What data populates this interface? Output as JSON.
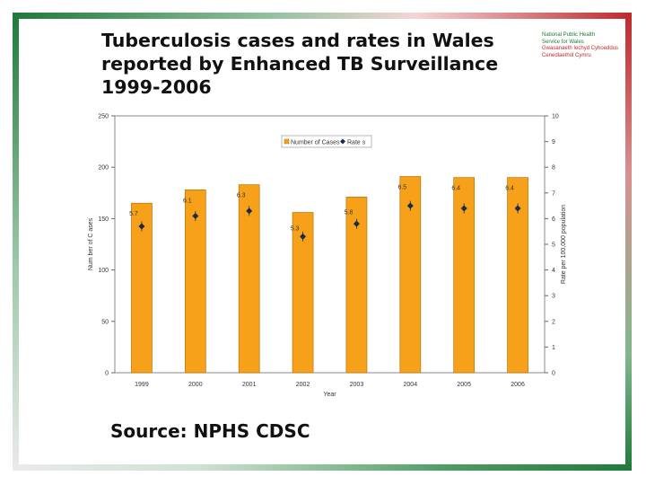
{
  "slide": {
    "title_lines": [
      "Tuberculosis cases and rates in Wales",
      "reported by Enhanced TB Surveillance",
      "1999-2006"
    ],
    "source": "Source: NPHS CDSC",
    "logo_lines_en": [
      "National Public Health",
      "Service for Wales"
    ],
    "logo_lines_cy": [
      "Gwasanaeth Iechyd Cyhoeddus",
      "Cenedlaethol Cymru"
    ]
  },
  "colors": {
    "bar": "#f7a11a",
    "bar_edge": "#b87307",
    "marker": "#1b2a4a",
    "plot_bg": "#ffffff",
    "grid": "#dcdcdc",
    "frame_green": "#1f7a3a",
    "frame_red": "#c0282d"
  },
  "chart_data": {
    "type": "bar",
    "title": "",
    "categories": [
      "1999",
      "2000",
      "2001",
      "2002",
      "2003",
      "2004",
      "2005",
      "2006"
    ],
    "series": [
      {
        "name": "Number of Cases",
        "kind": "bar",
        "axis": "left",
        "values": [
          165,
          178,
          183,
          156,
          171,
          191,
          190,
          190
        ]
      },
      {
        "name": "Rate s",
        "kind": "marker",
        "axis": "right",
        "values": [
          5.7,
          6.1,
          6.3,
          5.3,
          5.8,
          6.5,
          6.4,
          6.4
        ]
      }
    ],
    "xlabel": "Year",
    "ylabel": "Num ber of C ases",
    "y2label": "Rate per 100,000 population",
    "ylim": [
      0,
      250
    ],
    "y2lim": [
      0,
      10
    ],
    "yticks": [
      0,
      50,
      100,
      150,
      200,
      250
    ],
    "y2ticks": [
      0,
      1,
      2,
      3,
      4,
      5,
      6,
      7,
      8,
      9,
      10
    ],
    "data_labels": [
      "5.7",
      "6.1",
      "6.3",
      "5.3",
      "5.8",
      "6.5",
      "6.4",
      "6.4"
    ],
    "legend_position": "top-center",
    "grid": false
  }
}
